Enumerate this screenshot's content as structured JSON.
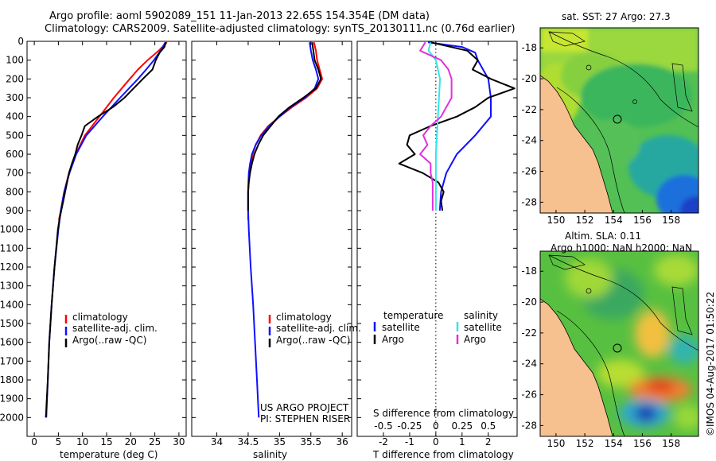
{
  "header": {
    "line1": "Argo profile: aoml 5902089_151 11-Jan-2013 22.65S 154.354E (DM data)",
    "line2": "Climatology: CARS2009. Satellite-adjusted climatology: synTS_20130111.nc (0.76d earlier)"
  },
  "footer": {
    "project": "US ARGO PROJECT",
    "pi": "PI: STEPHEN RISER",
    "stamp": "©IMOS 04-Aug-2017 01:50:22"
  },
  "colors": {
    "climatology": "#ff0000",
    "satellite": "#1010ff",
    "argo": "#000000",
    "sal_satellite": "#33e6e6",
    "sal_argo": "#e030e0",
    "land": "#f7c08f"
  },
  "chart_data": [
    {
      "type": "line",
      "panel": "temperature",
      "xlabel": "temperature (deg C)",
      "xlim": [
        -1.5,
        31.5
      ],
      "xticks": [
        0,
        5,
        10,
        15,
        20,
        25,
        30
      ],
      "ylim": [
        0,
        2100
      ],
      "yticks": [
        0,
        100,
        200,
        300,
        400,
        500,
        600,
        700,
        800,
        900,
        1000,
        1100,
        1200,
        1300,
        1400,
        1500,
        1600,
        1700,
        1800,
        1900,
        2000
      ],
      "legend": [
        "climatology",
        "satellite-adj. clim.",
        "Argo(..raw -QC)"
      ],
      "series": [
        {
          "name": "climatology",
          "depth": [
            5,
            50,
            100,
            150,
            200,
            300,
            400,
            500,
            600,
            700,
            800,
            900,
            950
          ],
          "values": [
            27.5,
            25.8,
            23.5,
            21.5,
            19.8,
            16.5,
            13.5,
            10.5,
            8.6,
            7.2,
            6.2,
            5.5,
            5.1
          ]
        },
        {
          "name": "satellite-adj. clim.",
          "depth": [
            5,
            50,
            100,
            150,
            200,
            300,
            400,
            500,
            600,
            700,
            800,
            900,
            1000,
            1200,
            1400,
            1600,
            1800,
            2000
          ],
          "values": [
            27.2,
            26.2,
            24.8,
            23.2,
            21.5,
            17.8,
            14.2,
            10.8,
            8.7,
            7.3,
            6.2,
            5.5,
            5.0,
            4.2,
            3.6,
            3.1,
            2.8,
            2.5
          ]
        },
        {
          "name": "Argo(..raw -QC)",
          "depth": [
            5,
            30,
            60,
            100,
            150,
            200,
            250,
            300,
            350,
            400,
            450,
            500,
            550,
            600,
            650,
            700,
            750,
            800,
            850,
            900,
            950,
            1000,
            1200,
            1400,
            1600,
            1800,
            2000
          ],
          "values": [
            27.3,
            27.0,
            26.0,
            25.2,
            24.5,
            22.5,
            20.6,
            18.7,
            16.3,
            13.2,
            10.5,
            9.8,
            9.0,
            8.5,
            7.8,
            7.2,
            6.8,
            6.4,
            6.0,
            5.6,
            5.2,
            4.9,
            4.2,
            3.6,
            3.1,
            2.8,
            2.4
          ]
        }
      ]
    },
    {
      "type": "line",
      "panel": "salinity",
      "xlabel": "salinity",
      "xlim": [
        33.6,
        36.15
      ],
      "xticks": [
        34,
        34.5,
        35,
        35.5,
        36
      ],
      "ylim": [
        0,
        2100
      ],
      "legend": [
        "climatology",
        "satellite-adj. clim.",
        "Argo(..raw -QC)"
      ],
      "series": [
        {
          "name": "climatology",
          "depth": [
            5,
            50,
            100,
            150,
            200,
            250,
            300,
            350,
            400,
            450,
            500,
            550,
            600,
            650,
            700,
            800,
            900,
            950
          ],
          "values": [
            35.55,
            35.58,
            35.6,
            35.64,
            35.68,
            35.6,
            35.42,
            35.2,
            35.0,
            34.82,
            34.7,
            34.62,
            34.57,
            34.54,
            34.52,
            34.5,
            34.5,
            34.5
          ]
        },
        {
          "name": "satellite-adj. clim.",
          "depth": [
            5,
            50,
            100,
            150,
            200,
            250,
            300,
            350,
            400,
            450,
            500,
            550,
            600,
            650,
            700,
            800,
            900,
            1000,
            1200,
            1400,
            1600,
            1800,
            2000
          ],
          "values": [
            35.48,
            35.5,
            35.53,
            35.58,
            35.62,
            35.56,
            35.4,
            35.18,
            35.0,
            34.84,
            34.71,
            34.62,
            34.56,
            34.53,
            34.51,
            34.5,
            34.5,
            34.51,
            34.54,
            34.58,
            34.61,
            34.64,
            34.67
          ]
        },
        {
          "name": "Argo(..raw -QC)",
          "depth": [
            5,
            50,
            100,
            150,
            200,
            250,
            300,
            350,
            400,
            450,
            500,
            550,
            600,
            650,
            700,
            750,
            800,
            850,
            900
          ],
          "values": [
            35.52,
            35.54,
            35.56,
            35.62,
            35.66,
            35.58,
            35.38,
            35.16,
            34.98,
            34.86,
            34.74,
            34.66,
            34.6,
            34.56,
            34.53,
            34.51,
            34.5,
            34.5,
            34.5
          ]
        }
      ]
    },
    {
      "type": "line",
      "panel": "difference",
      "xlabel_bottom": "T difference from climatology",
      "xticks_bottom": [
        -2,
        -1,
        0,
        1,
        2
      ],
      "xlim_bottom": [
        -3,
        3.1
      ],
      "xlabel_top": "S difference from climatology",
      "xticks_top": [
        "-0.5",
        "-0.25",
        "0",
        "0.25",
        "0.5"
      ],
      "ylim": [
        0,
        2100
      ],
      "legend_temperature": {
        "title": "temperature",
        "items": [
          "satellite",
          "Argo"
        ]
      },
      "legend_salinity": {
        "title": "salinity",
        "items": [
          "satellite",
          "Argo"
        ]
      },
      "series": [
        {
          "name": "temperature satellite",
          "depth": [
            5,
            30,
            60,
            100,
            150,
            200,
            300,
            400,
            500,
            600,
            700,
            800,
            900
          ],
          "values": [
            -0.3,
            1.0,
            1.5,
            1.6,
            1.8,
            2.0,
            2.1,
            2.1,
            1.5,
            0.8,
            0.4,
            0.2,
            0.15
          ]
        },
        {
          "name": "temperature Argo",
          "depth": [
            5,
            50,
            100,
            150,
            200,
            250,
            300,
            350,
            400,
            450,
            500,
            550,
            600,
            650,
            700,
            750,
            800,
            850,
            900
          ],
          "values": [
            -0.2,
            1.2,
            1.6,
            1.4,
            2.1,
            3.0,
            2.0,
            1.5,
            0.8,
            -0.2,
            -1.0,
            -1.1,
            -0.8,
            -1.4,
            -0.5,
            0.1,
            0.3,
            0.2,
            0.25
          ]
        },
        {
          "name": "salinity satellite",
          "depth": [
            5,
            50,
            100,
            150,
            200,
            300,
            400,
            500,
            600,
            700,
            800,
            900
          ],
          "values": [
            -0.05,
            -0.07,
            0.0,
            0.02,
            0.04,
            0.03,
            0.02,
            0.01,
            0.0,
            0.0,
            0.0,
            0.0
          ]
        },
        {
          "name": "salinity Argo",
          "depth": [
            5,
            50,
            100,
            150,
            200,
            250,
            300,
            350,
            400,
            450,
            500,
            550,
            600,
            650,
            700,
            750,
            800,
            850,
            900
          ],
          "values": [
            -0.1,
            -0.15,
            0.05,
            0.12,
            0.15,
            0.15,
            0.15,
            0.1,
            0.05,
            -0.05,
            -0.12,
            -0.08,
            -0.15,
            -0.05,
            -0.05,
            -0.03,
            -0.03,
            -0.03,
            -0.03
          ]
        }
      ]
    },
    {
      "type": "heatmap",
      "panel": "sst-map",
      "title": "sat. SST: 27  Argo: 27.3",
      "xticks": [
        150,
        152,
        154,
        156,
        158
      ],
      "yticks": [
        -18,
        -20,
        -22,
        -24,
        -26,
        -28
      ],
      "xlim": [
        148.9,
        159.9
      ],
      "ylim": [
        -28.7,
        -16.7
      ],
      "marker_lon": 154.354,
      "marker_lat": -22.65
    },
    {
      "type": "heatmap",
      "panel": "sla-map",
      "title_lines": [
        "Altim. SLA: 0.11",
        "Argo h1000: NaN h2000: NaN"
      ],
      "xticks": [
        150,
        152,
        154,
        156,
        158
      ],
      "yticks": [
        -18,
        -20,
        -22,
        -24,
        -26,
        -28
      ],
      "xlim": [
        148.9,
        159.9
      ],
      "ylim": [
        -28.7,
        -16.7
      ],
      "marker_lon": 154.354,
      "marker_lat": -22.65
    }
  ]
}
